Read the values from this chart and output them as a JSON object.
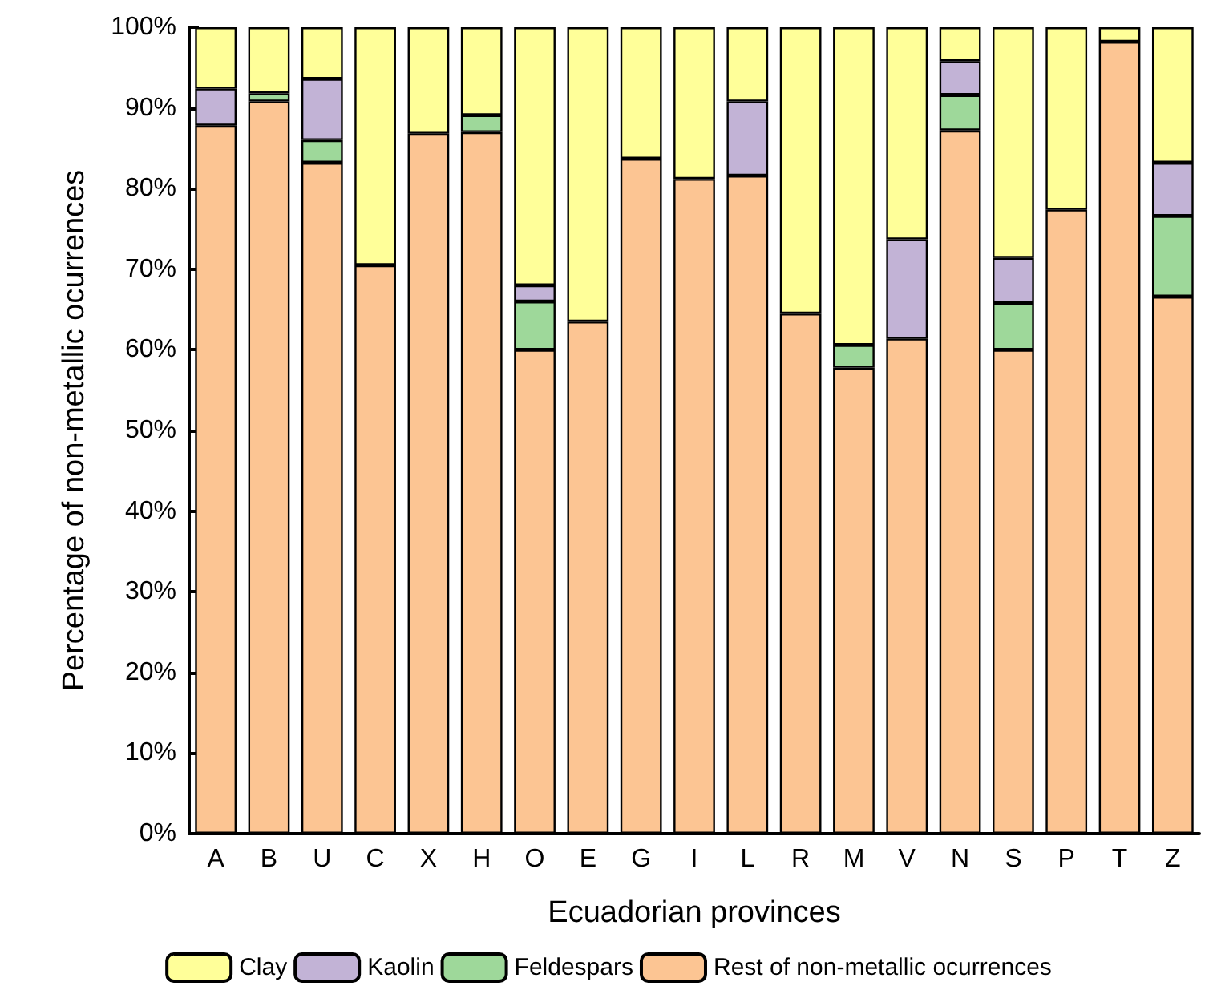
{
  "chart_data": {
    "type": "bar",
    "stacked": true,
    "xlabel": "Ecuadorian provinces",
    "ylabel": "Percentage of non-metallic ocurrences",
    "categories": [
      "A",
      "B",
      "U",
      "C",
      "X",
      "H",
      "O",
      "E",
      "G",
      "I",
      "L",
      "R",
      "M",
      "V",
      "N",
      "S",
      "P",
      "T",
      "Z"
    ],
    "series": [
      {
        "name": "Rest of non-metallic ocurrences",
        "color": "#fcc593",
        "values": [
          87.8,
          90.8,
          83.2,
          70.5,
          86.8,
          87,
          60,
          63.5,
          83.7,
          81.2,
          81.6,
          64.5,
          57.8,
          61.4,
          87.2,
          60,
          77.4,
          98.2,
          66.6
        ]
      },
      {
        "name": "Feldespars",
        "color": "#9ed89a",
        "values": [
          null,
          1,
          2.8,
          null,
          null,
          2.1,
          6,
          null,
          null,
          null,
          null,
          null,
          2.8,
          null,
          4.4,
          5.8,
          null,
          null,
          10
        ]
      },
      {
        "name": "Kaolin",
        "color": "#c2b3d6",
        "values": [
          4.6,
          null,
          7.6,
          null,
          null,
          null,
          2,
          null,
          null,
          null,
          9.2,
          null,
          null,
          12.3,
          4.2,
          5.6,
          null,
          null,
          6.6
        ]
      },
      {
        "name": "Clay",
        "color": "#ffff99",
        "values": [
          7.6,
          8.2,
          6.4,
          29.5,
          13.2,
          10.9,
          32,
          36.5,
          16.3,
          18.8,
          9.2,
          35.5,
          39.4,
          26.3,
          4.2,
          28.6,
          22.6,
          1.8,
          16.8
        ]
      }
    ],
    "ylim": [
      0,
      100
    ],
    "yticks": [
      {
        "value": 0,
        "label": "0%"
      },
      {
        "value": 10,
        "label": "10%"
      },
      {
        "value": 20,
        "label": "20%"
      },
      {
        "value": 30,
        "label": "30%"
      },
      {
        "value": 40,
        "label": "40%"
      },
      {
        "value": 50,
        "label": "50%"
      },
      {
        "value": 60,
        "label": "60%"
      },
      {
        "value": 70,
        "label": "70%"
      },
      {
        "value": 80,
        "label": "80%"
      },
      {
        "value": 90,
        "label": "90%"
      },
      {
        "value": 100,
        "label": "100%"
      }
    ],
    "grid": false,
    "legend": "bottom"
  }
}
